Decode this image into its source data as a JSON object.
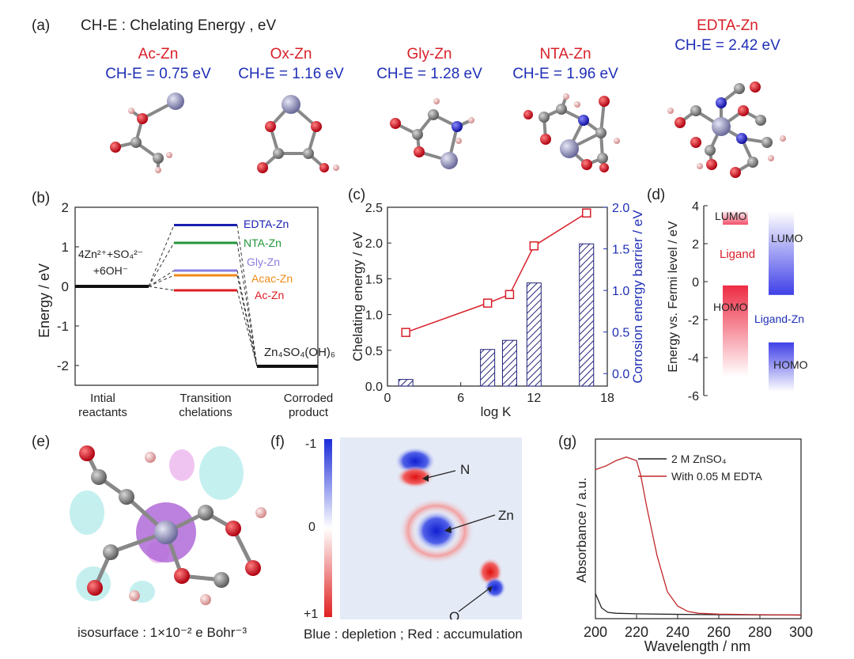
{
  "panel_a": {
    "label": "(a)",
    "title": "CH-E : Chelating Energy , eV",
    "molecules": [
      {
        "name": "Ac-Zn",
        "che": "CH-E = 0.75 eV"
      },
      {
        "name": "Ox-Zn",
        "che": "CH-E = 1.16 eV"
      },
      {
        "name": "Gly-Zn",
        "che": "CH-E = 1.28 eV"
      },
      {
        "name": "NTA-Zn",
        "che": "CH-E = 1.96 eV"
      },
      {
        "name": "EDTA-Zn",
        "che": "CH-E = 2.42 eV"
      }
    ]
  },
  "panel_b": {
    "label": "(b)",
    "reactant_line1": "4Zn²⁺+SO₄²⁻",
    "reactant_line2": "+6OH⁻",
    "product_label": "Zn₄SO₄(OH)₆",
    "level_labels": [
      "EDTA-Zn",
      "NTA-Zn",
      "Gly-Zn",
      "Acac-Zn",
      "Ac-Zn"
    ],
    "categories": [
      "Intial reactants",
      "Transition chelations",
      "Corroded product"
    ],
    "category_line1": [
      "Intial",
      "Transition",
      "Corroded"
    ],
    "category_line2": [
      "reactants",
      "chelations",
      "product"
    ],
    "colors": {
      "EDTA-Zn": "#1a1fb0",
      "NTA-Zn": "#22963a",
      "Gly-Zn": "#8a7ee0",
      "Acac-Zn": "#f08a1a",
      "Ac-Zn": "#e01c24"
    }
  },
  "panel_c": {
    "label": "(c)"
  },
  "panel_d": {
    "label": "(d)",
    "ylabel": "Energy vs. Fermi level / eV",
    "ligand_label": "Ligand",
    "ligand_zn_label": "Ligand-Zn",
    "lumo": "LUMO",
    "homo": "HOMO"
  },
  "panel_e": {
    "label": "(e)",
    "caption": "isosurface : 1×10⁻² e Bohr⁻³"
  },
  "panel_f": {
    "label": "(f)",
    "caption": "Blue : depletion ; Red : accumulation",
    "colorbar_ticks": [
      "-1",
      "0",
      "+1"
    ],
    "atoms": [
      "N",
      "Zn",
      "O"
    ]
  },
  "panel_g": {
    "label": "(g)"
  },
  "chart_data": [
    {
      "type": "line",
      "id": "b",
      "ylabel": "Energy / eV",
      "ylim": [
        -2.5,
        2
      ],
      "yticks": [
        -2,
        -1,
        0,
        1,
        2
      ],
      "categories": [
        "Intial reactants",
        "Transition chelations",
        "Corroded product"
      ],
      "series": [
        {
          "name": "EDTA-Zn",
          "values": [
            0,
            1.55,
            -2.02
          ]
        },
        {
          "name": "NTA-Zn",
          "values": [
            0,
            1.1,
            -2.02
          ]
        },
        {
          "name": "Gly-Zn",
          "values": [
            0,
            0.4,
            -2.02
          ]
        },
        {
          "name": "Acac-Zn",
          "values": [
            0,
            0.28,
            -2.02
          ]
        },
        {
          "name": "Ac-Zn",
          "values": [
            0,
            -0.1,
            -2.02
          ]
        }
      ]
    },
    {
      "type": "bar",
      "id": "c",
      "xlabel": "log K",
      "ylabel": "Chelating energy / eV",
      "y2label": "Corrosion energy barrier / eV",
      "xlim": [
        0,
        18
      ],
      "xticks": [
        0,
        6,
        12,
        18
      ],
      "ylim": [
        0,
        2.5
      ],
      "yticks": [
        0.0,
        0.5,
        1.0,
        1.5,
        2.0,
        2.5
      ],
      "y2lim": [
        -0.15,
        2.0
      ],
      "y2ticks": [
        0.0,
        0.5,
        1.0,
        1.5,
        2.0
      ],
      "series": [
        {
          "name": "Chelating energy",
          "kind": "line",
          "x": [
            1.5,
            8.2,
            10.0,
            12.0,
            16.3
          ],
          "y": [
            0.75,
            1.16,
            1.28,
            1.96,
            2.42
          ]
        },
        {
          "name": "Corrosion energy barrier",
          "kind": "bar",
          "x": [
            1.5,
            8.2,
            10.0,
            12.0,
            16.3
          ],
          "y": [
            -0.07,
            0.29,
            0.4,
            1.09,
            1.56
          ]
        }
      ]
    },
    {
      "type": "bar",
      "id": "d",
      "ylabel": "Energy vs. Fermi level / eV",
      "ylim": [
        -6,
        4
      ],
      "yticks": [
        -6,
        -4,
        -2,
        0,
        2,
        4
      ],
      "series": [
        {
          "name": "Ligand",
          "lumo": [
            3.0,
            3.7
          ],
          "homo": [
            -5.0,
            -0.2
          ]
        },
        {
          "name": "Ligand-Zn",
          "lumo": [
            -0.7,
            3.7
          ],
          "homo": [
            -5.8,
            -3.2
          ]
        }
      ]
    },
    {
      "type": "line",
      "id": "g",
      "xlabel": "Wavelength / nm",
      "ylabel": "Absorbance / a.u.",
      "xlim": [
        200,
        300
      ],
      "xticks": [
        200,
        220,
        240,
        260,
        280,
        300
      ],
      "ylim": [
        0,
        1
      ],
      "series": [
        {
          "name": "2 M ZnSO₄",
          "color": "#222222",
          "x": [
            200,
            203,
            206,
            210,
            220,
            240,
            260,
            300
          ],
          "y": [
            0.14,
            0.06,
            0.035,
            0.03,
            0.027,
            0.024,
            0.022,
            0.02
          ]
        },
        {
          "name": "With 0.05 M EDTA",
          "color": "#c0282a",
          "x": [
            200,
            205,
            210,
            215,
            220,
            222,
            225,
            230,
            235,
            240,
            245,
            250,
            260,
            280,
            300
          ],
          "y": [
            0.83,
            0.85,
            0.88,
            0.9,
            0.88,
            0.8,
            0.62,
            0.35,
            0.15,
            0.07,
            0.04,
            0.03,
            0.025,
            0.022,
            0.02
          ]
        }
      ]
    }
  ]
}
